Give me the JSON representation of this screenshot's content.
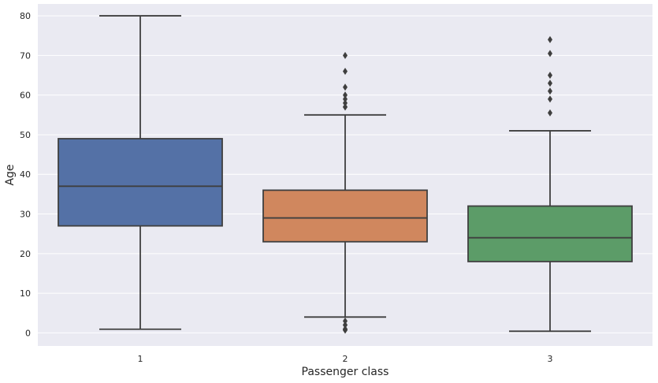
{
  "chart_data": {
    "type": "box",
    "xlabel": "Passenger class",
    "ylabel": "Age",
    "ylim": [
      -3.3,
      83.0
    ],
    "yticks": [
      0,
      10,
      20,
      30,
      40,
      50,
      60,
      70,
      80
    ],
    "grid": true,
    "background": "#eaeaf2",
    "categories": [
      "1",
      "2",
      "3"
    ],
    "boxes": [
      {
        "category": "1",
        "color": "#5471a6",
        "whisker_low": 0.92,
        "q1": 27,
        "median": 37,
        "q3": 49,
        "whisker_high": 80,
        "outliers": []
      },
      {
        "category": "2",
        "color": "#d0875e",
        "whisker_low": 4,
        "q1": 23,
        "median": 29,
        "q3": 36,
        "whisker_high": 55,
        "outliers": [
          0.67,
          0.83,
          0.83,
          1,
          2,
          2,
          3,
          57,
          57,
          58,
          59,
          60,
          62,
          66,
          70
        ]
      },
      {
        "category": "3",
        "color": "#5c9c68",
        "whisker_low": 0.42,
        "q1": 18,
        "median": 24,
        "q3": 32,
        "whisker_high": 51,
        "outliers": [
          55.5,
          59,
          61,
          63,
          65,
          70.5,
          74
        ]
      }
    ]
  }
}
